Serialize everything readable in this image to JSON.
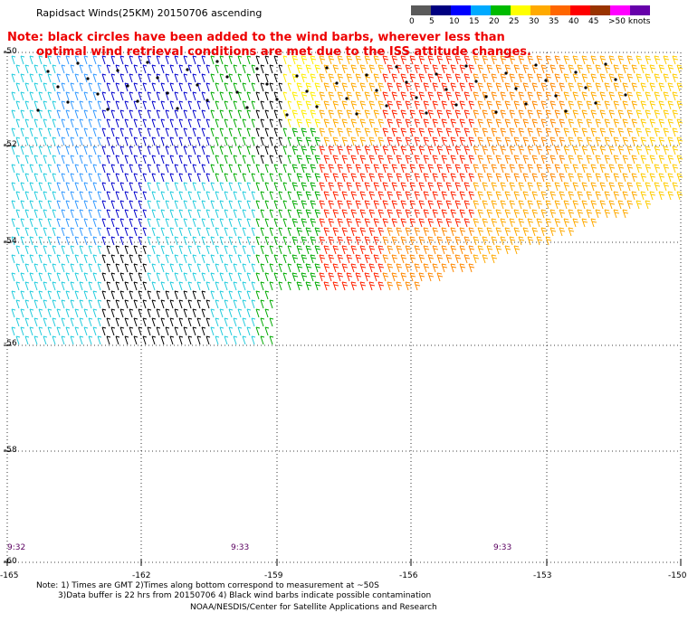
{
  "title": "Rapidsact Winds(25KM) 20150706 ascending",
  "note_line1": "Note: black circles have been added to the wind barbs, wherever less than",
  "note_line2": "optimal wind retrieval conditions are met due to the ISS attitude changes.",
  "legend": {
    "labels": [
      "0",
      "5",
      "10",
      "15",
      "20",
      "25",
      "30",
      "35",
      "40",
      "45",
      ">50 knots"
    ],
    "colors": [
      "#5a5a5a",
      "#000080",
      "#0000ff",
      "#00aaff",
      "#00bb00",
      "#ffff00",
      "#ffaa00",
      "#ff6600",
      "#ff0000",
      "#993300",
      "#ff00ff",
      "#6600aa"
    ]
  },
  "lat_labels": [
    "-50",
    "-52",
    "-54",
    "-56",
    "-58",
    "-60"
  ],
  "lon_labels": [
    "-165",
    "-162",
    "-159",
    "-156",
    "-153",
    "-150"
  ],
  "time_labels": [
    "9:32",
    "9:33",
    "9:33"
  ],
  "footer": {
    "line1": "Note: 1) Times are GMT 2)Times along bottom correspond to measurement at ~50S",
    "line2": "3)Data buffer is 22 hrs from 20150706 4) Black wind barbs indicate possible contamination",
    "line3": "NOAA/NESDIS/Center for Satellite Applications and Research"
  }
}
